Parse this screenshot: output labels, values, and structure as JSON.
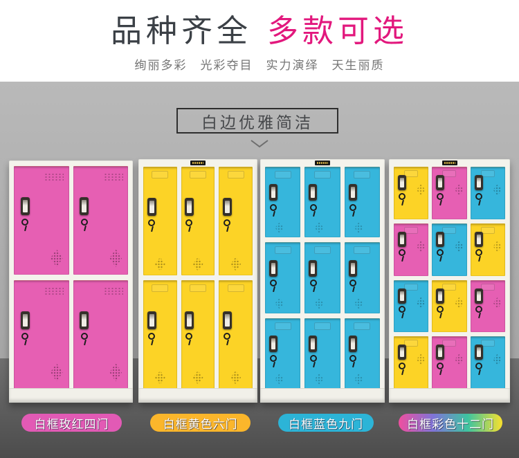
{
  "header": {
    "title_main": "品种齐全",
    "title_accent": "多款可选",
    "title_main_color": "#3b4046",
    "title_accent_color": "#e2187d",
    "subtitle": "绚丽多彩　光彩夺目　实力演绎　天生丽质",
    "subtitle_color": "#757575"
  },
  "section": {
    "box_label": "白边优雅简洁",
    "chevron_icon": "chevron-down",
    "chevron_color": "#6e6e6e"
  },
  "door_colors": {
    "pink": "#e65fb3",
    "yellow": "#fcd326",
    "blue": "#36b6dc"
  },
  "frame_color": "#f4f3ec",
  "backdrop": {
    "wall_top": "#b9b9b9",
    "wall_bottom": "#9e9e9e",
    "floor_top": "#6f6f6f",
    "floor_bottom": "#4c4c4c"
  },
  "lockers": [
    {
      "id": "pink-4door",
      "label_text": "白框玫红四门",
      "label_bg": "#e25ab5",
      "cols": 2,
      "rows": 2,
      "door_count": 4,
      "nameplate": false,
      "doors": [
        "pink",
        "pink",
        "pink",
        "pink"
      ]
    },
    {
      "id": "yellow-6door",
      "label_text": "白框黄色六门",
      "label_bg": "#fbb62b",
      "cols": 3,
      "rows": 2,
      "door_count": 6,
      "nameplate": true,
      "doors": [
        "yellow",
        "yellow",
        "yellow",
        "yellow",
        "yellow",
        "yellow"
      ]
    },
    {
      "id": "blue-9door",
      "label_text": "白框蓝色九门",
      "label_bg": "#2cb4d7",
      "cols": 3,
      "rows": 3,
      "door_count": 9,
      "nameplate": true,
      "doors": [
        "blue",
        "blue",
        "blue",
        "blue",
        "blue",
        "blue",
        "blue",
        "blue",
        "blue"
      ]
    },
    {
      "id": "multi-12door",
      "label_text": "白框彩色十二门",
      "label_gradient": [
        "#ef4f9f",
        "#7f74d8",
        "#3ec4a0",
        "#f8e02e"
      ],
      "cols": 3,
      "rows": 4,
      "door_count": 12,
      "nameplate": true,
      "doors": [
        "yellow",
        "pink",
        "blue",
        "pink",
        "blue",
        "yellow",
        "blue",
        "yellow",
        "pink",
        "yellow",
        "pink",
        "blue"
      ]
    }
  ]
}
